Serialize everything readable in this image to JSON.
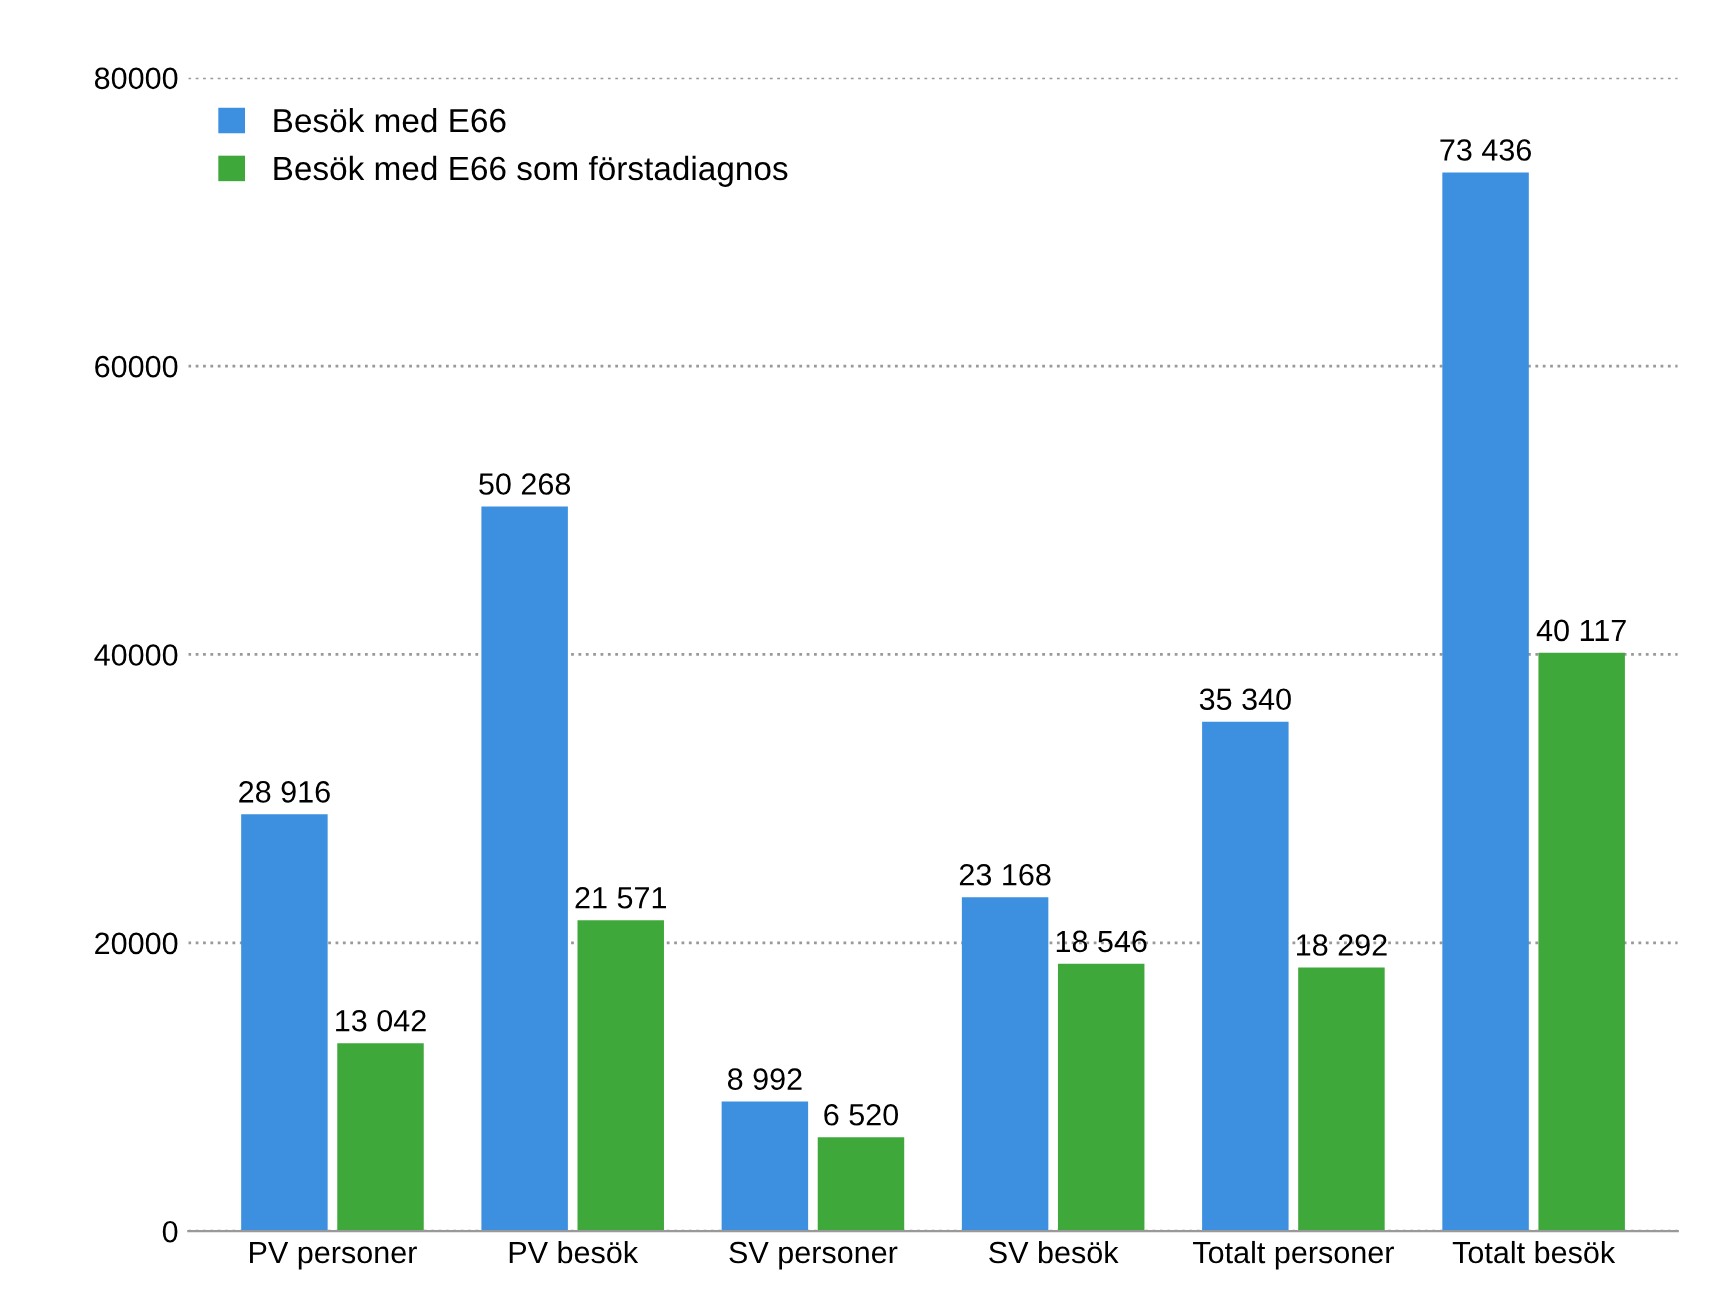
{
  "chart_data": {
    "type": "bar",
    "categories": [
      "PV personer",
      "PV besök",
      "SV personer",
      "SV besök",
      "Totalt personer",
      "Totalt besök"
    ],
    "series": [
      {
        "name": "Besök med E66",
        "color": "#3d8fe0",
        "values": [
          28916,
          50268,
          8992,
          23168,
          35340,
          73436
        ],
        "value_labels": [
          "28 916",
          "50 268",
          "8 992",
          "23 168",
          "35 340",
          "73 436"
        ]
      },
      {
        "name": "Besök med E66 som förstadiagnos",
        "color": "#3fa83a",
        "values": [
          13042,
          21571,
          6520,
          18546,
          18292,
          40117
        ],
        "value_labels": [
          "13 042",
          "21 571",
          "6 520",
          "18 546",
          "18 292",
          "40 117"
        ]
      }
    ],
    "ylim": [
      0,
      80000
    ],
    "yticks": [
      0,
      20000,
      40000,
      60000,
      80000
    ],
    "grid": "y",
    "legend": "top left"
  }
}
